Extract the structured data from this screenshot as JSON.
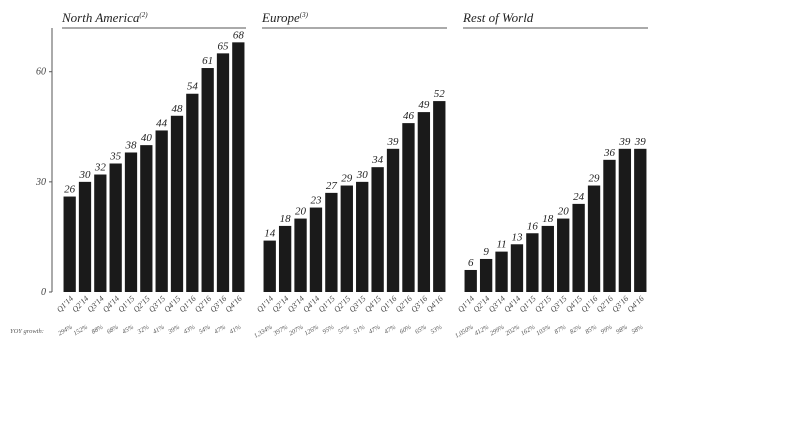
{
  "yoy_label": "YOY growth:",
  "chart_data": [
    {
      "type": "bar",
      "title": "North America",
      "title_note": "(2)",
      "categories": [
        "Q1'14",
        "Q2'14",
        "Q3'14",
        "Q4'14",
        "Q1'15",
        "Q2'15",
        "Q3'15",
        "Q4'15",
        "Q1'16",
        "Q2'16",
        "Q3'16",
        "Q4'16"
      ],
      "values": [
        26,
        30,
        32,
        35,
        38,
        40,
        44,
        48,
        54,
        61,
        65,
        68
      ],
      "yoy_growth": [
        "294%",
        "152%",
        "88%",
        "68%",
        "45%",
        "32%",
        "41%",
        "39%",
        "43%",
        "54%",
        "47%",
        "41%"
      ],
      "color": "#1a1a1a",
      "ylim": [
        0,
        70
      ],
      "yticks": [
        0,
        30,
        60
      ]
    },
    {
      "type": "bar",
      "title": "Europe",
      "title_note": "(3)",
      "categories": [
        "Q1'14",
        "Q2'14",
        "Q3'14",
        "Q4'14",
        "Q1'15",
        "Q2'15",
        "Q3'15",
        "Q4'15",
        "Q1'16",
        "Q2'16",
        "Q3'16",
        "Q4'16"
      ],
      "values": [
        14,
        18,
        20,
        23,
        27,
        29,
        30,
        34,
        39,
        46,
        49,
        52
      ],
      "yoy_growth": [
        "1,334%",
        "397%",
        "207%",
        "126%",
        "95%",
        "57%",
        "51%",
        "47%",
        "47%",
        "60%",
        "65%",
        "53%"
      ],
      "color": "#1a1a1a",
      "ylim": [
        0,
        70
      ]
    },
    {
      "type": "bar",
      "title": "Rest of World",
      "categories": [
        "Q1'14",
        "Q2'14",
        "Q3'14",
        "Q4'14",
        "Q1'15",
        "Q2'15",
        "Q3'15",
        "Q4'15",
        "Q1'16",
        "Q2'16",
        "Q3'16",
        "Q4'16"
      ],
      "values": [
        6,
        9,
        11,
        13,
        16,
        18,
        20,
        24,
        29,
        36,
        39,
        39
      ],
      "yoy_growth": [
        "1,050%",
        "412%",
        "299%",
        "202%",
        "162%",
        "103%",
        "87%",
        "82%",
        "85%",
        "99%",
        "98%",
        "58%"
      ],
      "color": "#1a1a1a",
      "ylim": [
        0,
        70
      ]
    }
  ]
}
